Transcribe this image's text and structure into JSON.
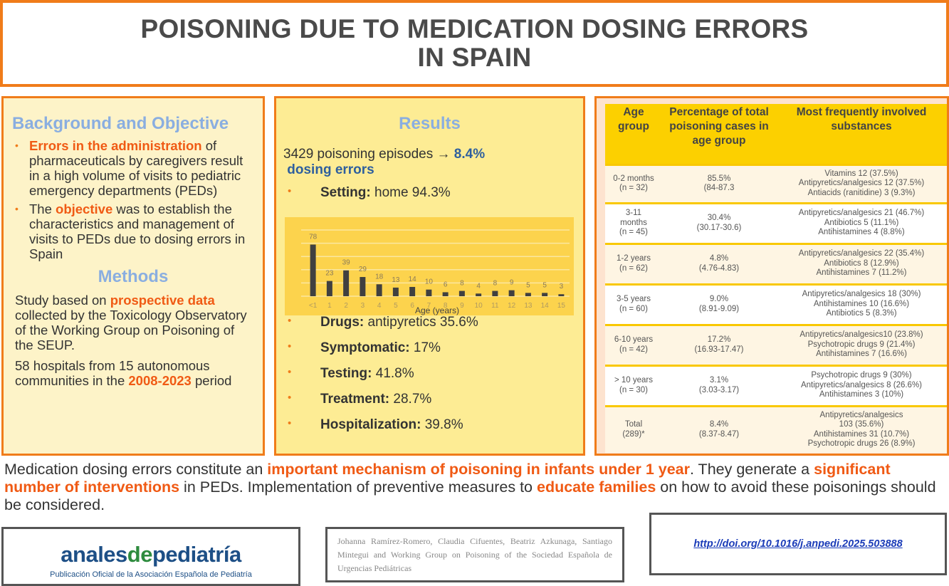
{
  "title": {
    "line1": "POISONING DUE TO MEDICATION DOSING ERRORS",
    "line2": "IN SPAIN"
  },
  "background": {
    "heading": "Background and Objective",
    "b1_hl": "Errors in the administration",
    "b1_rest": " of pharmaceuticals by caregivers result in a high volume of visits to pediatric emergency departments (PEDs)",
    "b2_pre": "The ",
    "b2_hl": "objective",
    "b2_rest": " was to establish the characteristics and management of visits to PEDs due to dosing errors in Spain"
  },
  "methods": {
    "heading": "Methods",
    "p1_pre": "Study based on ",
    "p1_hl": "prospective data",
    "p1_rest": " collected by the Toxicology Observatory of the Working Group on Poisoning of the SEUP.",
    "p2_pre": "58 hospitals from 15 autonomous communities in the ",
    "p2_hl": "2008-2023",
    "p2_rest": " period"
  },
  "results": {
    "heading": "Results",
    "episodes": "3429 poisoning episodes",
    "arrow": "→",
    "pct": "8.4%",
    "dosing": "dosing errors",
    "items": [
      {
        "label": "Setting:",
        "value": " home 94.3%"
      },
      {
        "label": "Drugs:",
        "value": " antipyretics 35.6%"
      },
      {
        "label": "Symptomatic:",
        "value": " 17%"
      },
      {
        "label": "Testing:",
        "value": " 41.8%"
      },
      {
        "label": "Treatment:",
        "value": " 28.7%"
      },
      {
        "label": "Hospitalization:",
        "value": " 39.8%"
      }
    ]
  },
  "chart_data": {
    "type": "bar",
    "categories": [
      "<1",
      "1",
      "2",
      "3",
      "4",
      "5",
      "6",
      "7",
      "8",
      "9",
      "10",
      "11",
      "12",
      "13",
      "14",
      "15"
    ],
    "values": [
      78,
      23,
      39,
      29,
      18,
      13,
      14,
      10,
      6,
      8,
      4,
      8,
      9,
      5,
      5,
      3
    ],
    "xlabel": "Age (years)",
    "ylabel": "",
    "ylim": [
      0,
      100
    ],
    "grid": true,
    "bar_color": "#404040",
    "background": "#fcd34d"
  },
  "table": {
    "headers": [
      "Age group",
      "Percentage of total poisoning cases in age group",
      "Most frequently involved substances"
    ],
    "rows": [
      {
        "age": [
          "0-2 months",
          "(n = 32)"
        ],
        "pct": [
          "85.5%",
          "(84-87.3"
        ],
        "subs": [
          "Vitamins 12 (37.5%)",
          "Antipyretics/analgesics 12 (37.5%)",
          "Antiacids (ranitidine) 3 (9.3%)"
        ]
      },
      {
        "age": [
          "3-11",
          "months",
          "(n = 45)"
        ],
        "pct": [
          "30.4%",
          "(30.17-30.6)"
        ],
        "subs": [
          "Antipyretics/analgesics 21 (46.7%)",
          "Antibiotics 5 (11.1%)",
          "Antihistamines 4 (8.8%)"
        ]
      },
      {
        "age": [
          "1-2 years",
          "(n = 62)"
        ],
        "pct": [
          "4.8%",
          "(4.76-4.83)"
        ],
        "subs": [
          "Antipyretics/analgesics 22 (35.4%)",
          "Antibiotics 8 (12.9%)",
          "Antihistamines 7 (11.2%)"
        ]
      },
      {
        "age": [
          "3-5 years",
          "(n = 60)"
        ],
        "pct": [
          "9.0%",
          "(8.91-9.09)"
        ],
        "subs": [
          "Antipyretics/analgesics 18 (30%)",
          "Antihistamines 10 (16.6%)",
          "Antibiotics 5 (8.3%)"
        ]
      },
      {
        "age": [
          "6-10 years",
          "(n = 42)"
        ],
        "pct": [
          "17.2%",
          "(16.93-17.47)"
        ],
        "subs": [
          "Antipyretics/analgesics10 (23.8%)",
          "Psychotropic drugs 9 (21.4%)",
          "Antihistamines 7 (16.6%)"
        ]
      },
      {
        "age": [
          "> 10 years",
          "(n = 30)"
        ],
        "pct": [
          "3.1%",
          "(3.03-3.17)"
        ],
        "subs": [
          "Psychotropic drugs 9 (30%)",
          "Antipyretics/analgesics 8 (26.6%)",
          "Antihistamines 3 (10%)"
        ]
      },
      {
        "age": [
          "Total",
          "(289)*"
        ],
        "pct": [
          "8.4%",
          "(8.37-8.47)"
        ],
        "subs": [
          "Antipyretics/analgesics",
          "103 (35.6%)",
          "Antihistamines 31 (10.7%)",
          "Psychotropic drugs 26 (8.9%)"
        ]
      }
    ]
  },
  "conclusion": {
    "t1": "Medication dosing errors constitute an ",
    "h1": "important mechanism of poisoning in infants under 1 year",
    "t2": ". They generate a ",
    "h2": "significant number of interventions",
    "t3": " in PEDs. Implementation of preventive measures to ",
    "h3": "educate families",
    "t4": " on how to avoid these poisonings should be considered."
  },
  "footer": {
    "logo_a": "anales",
    "logo_b": "de",
    "logo_c": "pediatría",
    "logo_sub": "Publicación Oficial de la Asociación Española de Pediatría",
    "authors": "Johanna Ramírez-Romero, Claudia Cifuentes, Beatriz Azkunaga, Santiago Mintegui and Working Group on Poisoning of the Sociedad Española de Urgencias Pediátricas",
    "doi": "http://doi.org/10.1016/j.anpedi.2025.503888"
  }
}
